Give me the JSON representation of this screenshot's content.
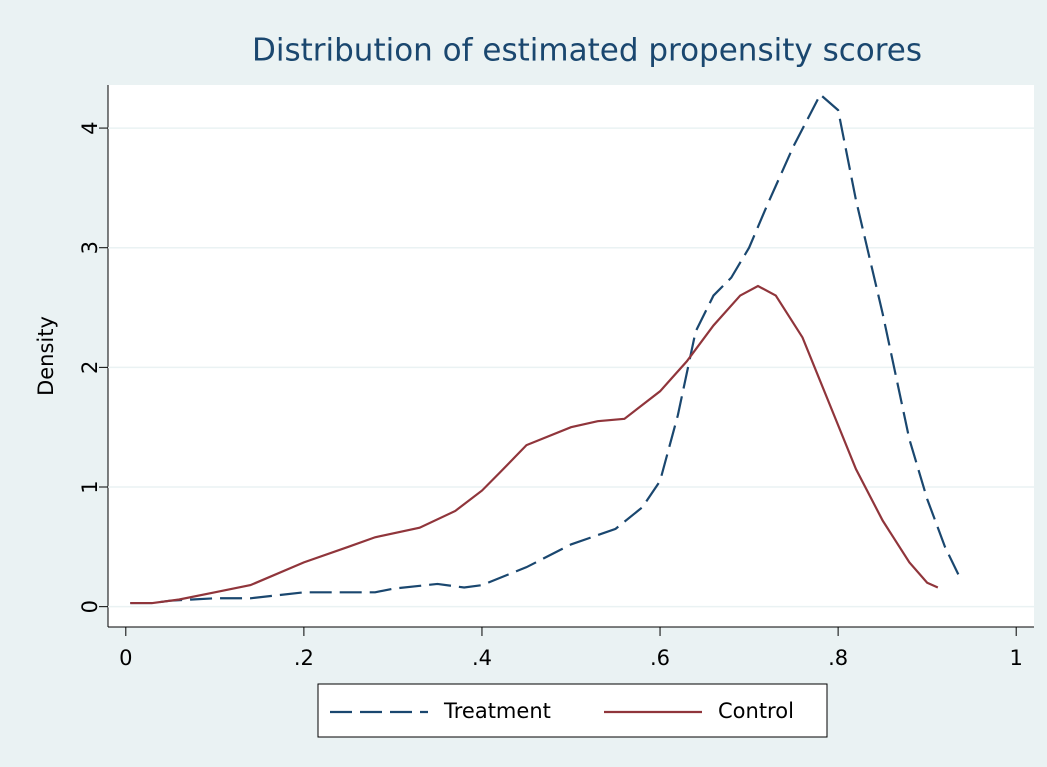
{
  "chart_data": {
    "type": "line",
    "title": "Distribution of estimated propensity scores",
    "y_label": "Density",
    "xlim": [
      -0.02,
      1.02
    ],
    "ylim": [
      -0.17,
      4.36
    ],
    "xticks": [
      0,
      {
        "value": 0.2,
        "label": ".2"
      },
      {
        "value": 0.4,
        "label": ".4"
      },
      {
        "value": 0.6,
        "label": ".6"
      },
      {
        "value": 0.8,
        "label": ".8"
      },
      1
    ],
    "yticks": [
      0,
      1,
      2,
      3,
      4
    ],
    "grid": true,
    "legend": "bottom",
    "series": [
      {
        "name": "Treatment",
        "color": "#1a476f",
        "dashed": true,
        "x": [
          0.005,
          0.03,
          0.05,
          0.1,
          0.14,
          0.2,
          0.25,
          0.28,
          0.3,
          0.35,
          0.38,
          0.4,
          0.45,
          0.5,
          0.55,
          0.58,
          0.6,
          0.62,
          0.64,
          0.66,
          0.68,
          0.7,
          0.72,
          0.75,
          0.78,
          0.8,
          0.82,
          0.85,
          0.88,
          0.9,
          0.92,
          0.935
        ],
        "values": [
          0.03,
          0.03,
          0.05,
          0.07,
          0.07,
          0.12,
          0.12,
          0.12,
          0.15,
          0.19,
          0.16,
          0.18,
          0.33,
          0.52,
          0.65,
          0.83,
          1.05,
          1.6,
          2.3,
          2.6,
          2.75,
          3.0,
          3.35,
          3.85,
          4.28,
          4.15,
          3.4,
          2.45,
          1.4,
          0.9,
          0.5,
          0.27
        ]
      },
      {
        "name": "Control",
        "color": "#90353b",
        "dashed": false,
        "x": [
          0.005,
          0.03,
          0.06,
          0.1,
          0.14,
          0.2,
          0.25,
          0.28,
          0.33,
          0.37,
          0.4,
          0.42,
          0.45,
          0.5,
          0.53,
          0.56,
          0.6,
          0.63,
          0.66,
          0.69,
          0.71,
          0.73,
          0.76,
          0.79,
          0.82,
          0.85,
          0.88,
          0.9,
          0.912
        ],
        "values": [
          0.03,
          0.03,
          0.06,
          0.12,
          0.18,
          0.37,
          0.5,
          0.58,
          0.66,
          0.8,
          0.97,
          1.12,
          1.35,
          1.5,
          1.55,
          1.57,
          1.8,
          2.05,
          2.35,
          2.6,
          2.68,
          2.6,
          2.25,
          1.7,
          1.15,
          0.72,
          0.37,
          0.2,
          0.16
        ]
      }
    ]
  }
}
